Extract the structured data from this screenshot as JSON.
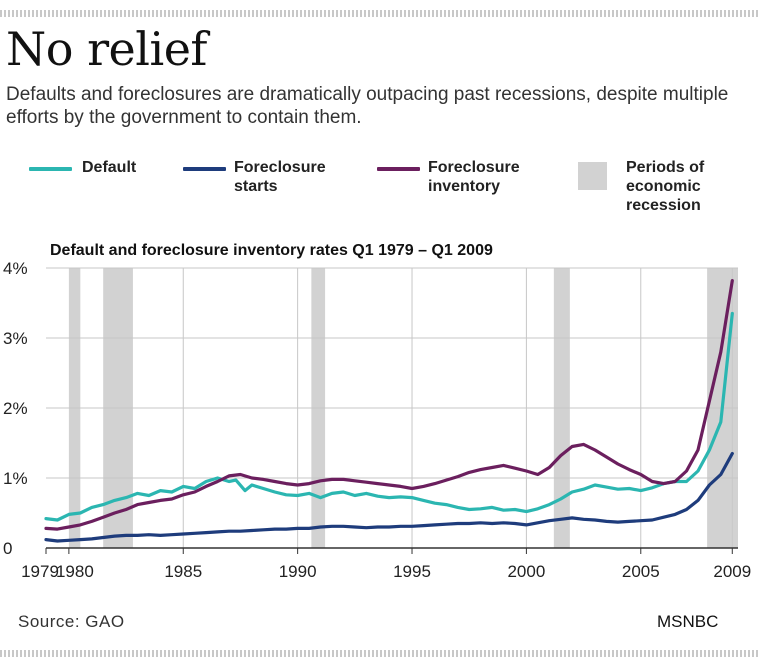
{
  "header": {
    "title": "No relief",
    "subtitle": "Defaults and foreclosures are dramatically outpacing past recessions, despite multiple efforts by the government to contain them."
  },
  "legend": {
    "default": "Default",
    "foreclosure_starts": "Foreclosure\nstarts",
    "foreclosure_inventory": "Foreclosure\ninventory",
    "recession": "Periods of\neconomic\nrecession"
  },
  "footer": {
    "source": "Source:  GAO",
    "credit": "MSNBC"
  },
  "colors": {
    "default": "#2bb6b1",
    "foreclosure_starts": "#1e3c7c",
    "foreclosure_inventory": "#6b1f5e",
    "recession": "#d2d2d2",
    "grid": "#c7c7c7"
  },
  "chart_data": {
    "type": "line",
    "title": "Default and foreclosure inventory rates Q1 1979 – Q1 2009",
    "xlabel": "",
    "ylabel": "",
    "xlim": [
      1979,
      2009.25
    ],
    "ylim": [
      0,
      4
    ],
    "x_ticks": [
      1979,
      1980,
      1985,
      1990,
      1995,
      2000,
      2005,
      2009
    ],
    "x_tick_labels": [
      "1979",
      "1980",
      "1985",
      "1990",
      "1995",
      "2000",
      "2005",
      "2009"
    ],
    "y_ticks": [
      0,
      1,
      2,
      3,
      4
    ],
    "y_tick_labels": [
      "0",
      "1%",
      "2%",
      "3%",
      "4%"
    ],
    "grid": true,
    "legend_position": "top",
    "recessions": [
      [
        1980.0,
        1980.5
      ],
      [
        1981.5,
        1982.8
      ],
      [
        1990.6,
        1991.2
      ],
      [
        2001.2,
        2001.9
      ],
      [
        2007.9,
        2009.25
      ]
    ],
    "series": [
      {
        "name": "Default",
        "key": "default",
        "points": [
          [
            1979,
            0.42
          ],
          [
            1979.5,
            0.4
          ],
          [
            1980,
            0.48
          ],
          [
            1980.5,
            0.5
          ],
          [
            1981,
            0.58
          ],
          [
            1981.5,
            0.62
          ],
          [
            1982,
            0.68
          ],
          [
            1982.5,
            0.72
          ],
          [
            1983,
            0.78
          ],
          [
            1983.5,
            0.75
          ],
          [
            1984,
            0.82
          ],
          [
            1984.5,
            0.8
          ],
          [
            1985,
            0.88
          ],
          [
            1985.5,
            0.85
          ],
          [
            1986,
            0.95
          ],
          [
            1986.5,
            1.0
          ],
          [
            1987,
            0.95
          ],
          [
            1987.3,
            0.97
          ],
          [
            1987.7,
            0.82
          ],
          [
            1988,
            0.9
          ],
          [
            1988.5,
            0.85
          ],
          [
            1989,
            0.8
          ],
          [
            1989.5,
            0.76
          ],
          [
            1990,
            0.75
          ],
          [
            1990.5,
            0.78
          ],
          [
            1991,
            0.72
          ],
          [
            1991.5,
            0.78
          ],
          [
            1992,
            0.8
          ],
          [
            1992.5,
            0.75
          ],
          [
            1993,
            0.78
          ],
          [
            1993.5,
            0.74
          ],
          [
            1994,
            0.72
          ],
          [
            1994.5,
            0.73
          ],
          [
            1995,
            0.72
          ],
          [
            1995.5,
            0.68
          ],
          [
            1996,
            0.64
          ],
          [
            1996.5,
            0.62
          ],
          [
            1997,
            0.58
          ],
          [
            1997.5,
            0.55
          ],
          [
            1998,
            0.56
          ],
          [
            1998.5,
            0.58
          ],
          [
            1999,
            0.54
          ],
          [
            1999.5,
            0.55
          ],
          [
            2000,
            0.52
          ],
          [
            2000.5,
            0.56
          ],
          [
            2001,
            0.62
          ],
          [
            2001.5,
            0.7
          ],
          [
            2002,
            0.8
          ],
          [
            2002.5,
            0.84
          ],
          [
            2003,
            0.9
          ],
          [
            2003.5,
            0.87
          ],
          [
            2004,
            0.84
          ],
          [
            2004.5,
            0.85
          ],
          [
            2005,
            0.82
          ],
          [
            2005.5,
            0.86
          ],
          [
            2006,
            0.92
          ],
          [
            2006.5,
            0.95
          ],
          [
            2007,
            0.95
          ],
          [
            2007.5,
            1.1
          ],
          [
            2008,
            1.4
          ],
          [
            2008.5,
            1.8
          ],
          [
            2009,
            3.35
          ]
        ]
      },
      {
        "name": "Foreclosure starts",
        "key": "foreclosure_starts",
        "points": [
          [
            1979,
            0.12
          ],
          [
            1979.5,
            0.1
          ],
          [
            1980,
            0.11
          ],
          [
            1980.5,
            0.12
          ],
          [
            1981,
            0.13
          ],
          [
            1981.5,
            0.15
          ],
          [
            1982,
            0.17
          ],
          [
            1982.5,
            0.18
          ],
          [
            1983,
            0.18
          ],
          [
            1983.5,
            0.19
          ],
          [
            1984,
            0.18
          ],
          [
            1984.5,
            0.19
          ],
          [
            1985,
            0.2
          ],
          [
            1985.5,
            0.21
          ],
          [
            1986,
            0.22
          ],
          [
            1986.5,
            0.23
          ],
          [
            1987,
            0.24
          ],
          [
            1987.5,
            0.24
          ],
          [
            1988,
            0.25
          ],
          [
            1988.5,
            0.26
          ],
          [
            1989,
            0.27
          ],
          [
            1989.5,
            0.27
          ],
          [
            1990,
            0.28
          ],
          [
            1990.5,
            0.28
          ],
          [
            1991,
            0.3
          ],
          [
            1991.5,
            0.31
          ],
          [
            1992,
            0.31
          ],
          [
            1992.5,
            0.3
          ],
          [
            1993,
            0.29
          ],
          [
            1993.5,
            0.3
          ],
          [
            1994,
            0.3
          ],
          [
            1994.5,
            0.31
          ],
          [
            1995,
            0.31
          ],
          [
            1995.5,
            0.32
          ],
          [
            1996,
            0.33
          ],
          [
            1996.5,
            0.34
          ],
          [
            1997,
            0.35
          ],
          [
            1997.5,
            0.35
          ],
          [
            1998,
            0.36
          ],
          [
            1998.5,
            0.35
          ],
          [
            1999,
            0.36
          ],
          [
            1999.5,
            0.35
          ],
          [
            2000,
            0.33
          ],
          [
            2000.5,
            0.36
          ],
          [
            2001,
            0.39
          ],
          [
            2001.5,
            0.41
          ],
          [
            2002,
            0.43
          ],
          [
            2002.5,
            0.41
          ],
          [
            2003,
            0.4
          ],
          [
            2003.5,
            0.38
          ],
          [
            2004,
            0.37
          ],
          [
            2004.5,
            0.38
          ],
          [
            2005,
            0.39
          ],
          [
            2005.5,
            0.4
          ],
          [
            2006,
            0.44
          ],
          [
            2006.5,
            0.48
          ],
          [
            2007,
            0.55
          ],
          [
            2007.5,
            0.68
          ],
          [
            2008,
            0.9
          ],
          [
            2008.5,
            1.05
          ],
          [
            2009,
            1.35
          ]
        ]
      },
      {
        "name": "Foreclosure inventory",
        "key": "foreclosure_inventory",
        "points": [
          [
            1979,
            0.28
          ],
          [
            1979.5,
            0.27
          ],
          [
            1980,
            0.3
          ],
          [
            1980.5,
            0.33
          ],
          [
            1981,
            0.38
          ],
          [
            1981.5,
            0.44
          ],
          [
            1982,
            0.5
          ],
          [
            1982.5,
            0.55
          ],
          [
            1983,
            0.62
          ],
          [
            1983.5,
            0.65
          ],
          [
            1984,
            0.68
          ],
          [
            1984.5,
            0.7
          ],
          [
            1985,
            0.76
          ],
          [
            1985.5,
            0.8
          ],
          [
            1986,
            0.88
          ],
          [
            1986.5,
            0.95
          ],
          [
            1987,
            1.03
          ],
          [
            1987.5,
            1.05
          ],
          [
            1988,
            1.0
          ],
          [
            1988.5,
            0.98
          ],
          [
            1989,
            0.95
          ],
          [
            1989.5,
            0.92
          ],
          [
            1990,
            0.9
          ],
          [
            1990.5,
            0.92
          ],
          [
            1991,
            0.96
          ],
          [
            1991.5,
            0.98
          ],
          [
            1992,
            0.98
          ],
          [
            1992.5,
            0.96
          ],
          [
            1993,
            0.94
          ],
          [
            1993.5,
            0.92
          ],
          [
            1994,
            0.9
          ],
          [
            1994.5,
            0.88
          ],
          [
            1995,
            0.85
          ],
          [
            1995.5,
            0.88
          ],
          [
            1996,
            0.92
          ],
          [
            1996.5,
            0.97
          ],
          [
            1997,
            1.02
          ],
          [
            1997.5,
            1.08
          ],
          [
            1998,
            1.12
          ],
          [
            1998.5,
            1.15
          ],
          [
            1999,
            1.18
          ],
          [
            1999.5,
            1.14
          ],
          [
            2000,
            1.1
          ],
          [
            2000.5,
            1.05
          ],
          [
            2001,
            1.15
          ],
          [
            2001.5,
            1.32
          ],
          [
            2002,
            1.45
          ],
          [
            2002.5,
            1.48
          ],
          [
            2003,
            1.4
          ],
          [
            2003.5,
            1.3
          ],
          [
            2004,
            1.2
          ],
          [
            2004.5,
            1.12
          ],
          [
            2005,
            1.05
          ],
          [
            2005.5,
            0.95
          ],
          [
            2006,
            0.92
          ],
          [
            2006.5,
            0.95
          ],
          [
            2007,
            1.1
          ],
          [
            2007.5,
            1.4
          ],
          [
            2008,
            2.1
          ],
          [
            2008.5,
            2.8
          ],
          [
            2009,
            3.82
          ]
        ]
      }
    ]
  }
}
